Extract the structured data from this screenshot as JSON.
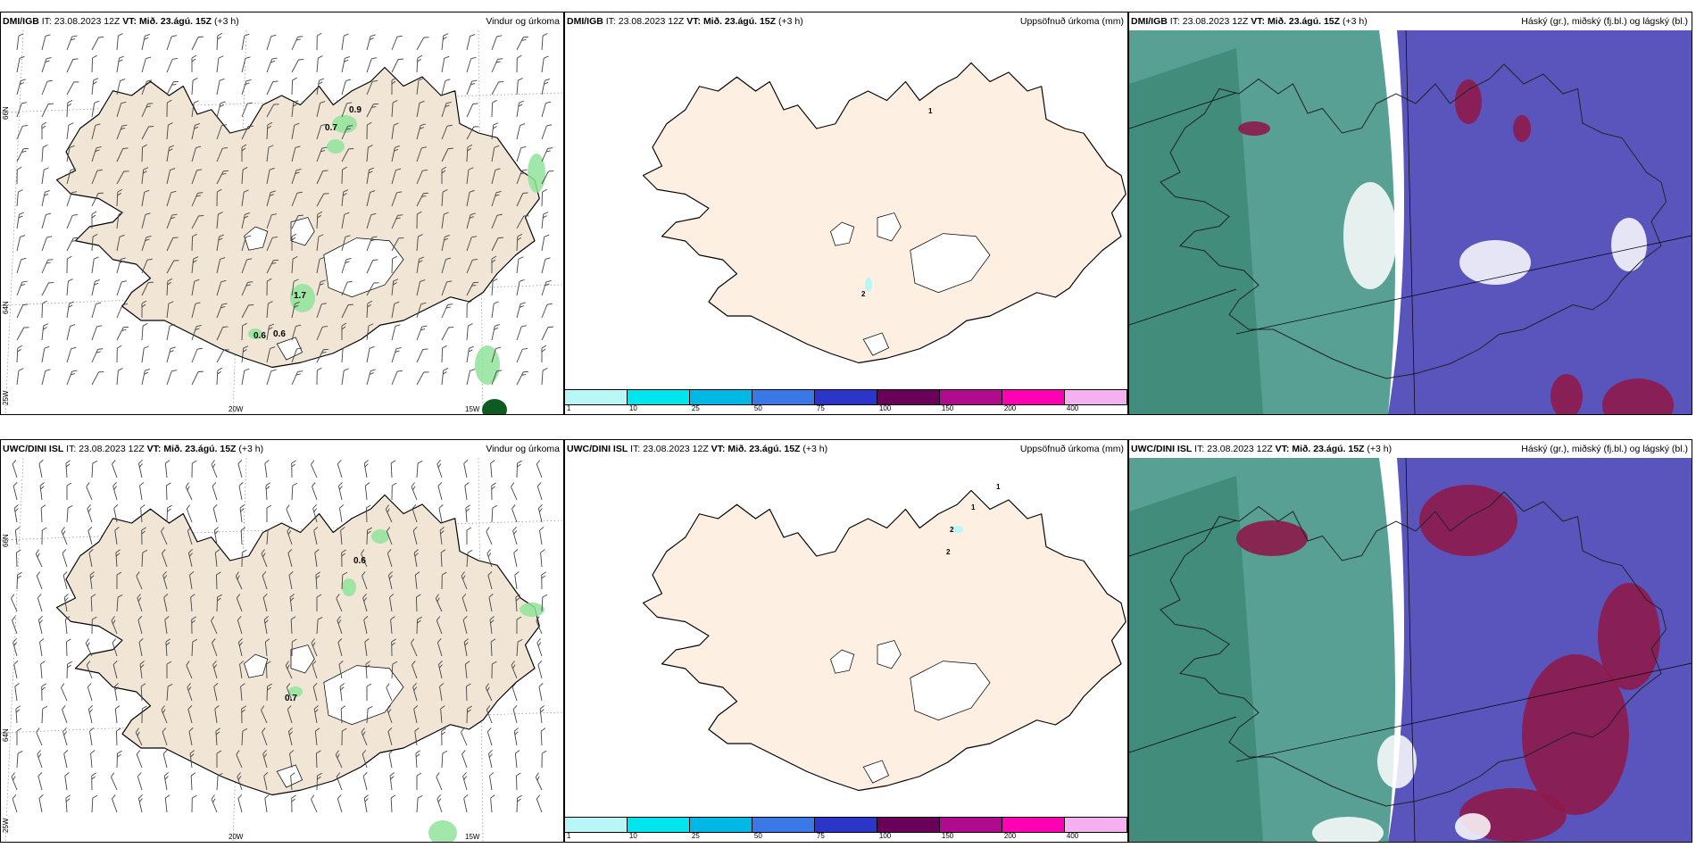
{
  "panels": [
    {
      "model": "DMI/IGB",
      "it_label": "IT:",
      "it": "23.08.2023 12Z",
      "vt_label": "VT:",
      "vt": "Mið. 23.ágú. 15Z",
      "lead": "(+3 h)",
      "product": "Vindur og úrkoma"
    },
    {
      "model": "DMI/IGB",
      "it_label": "IT:",
      "it": "23.08.2023 12Z",
      "vt_label": "VT:",
      "vt": "Mið. 23.ágú. 15Z",
      "lead": "(+3 h)",
      "product": "Uppsöfnuð úrkoma (mm)"
    },
    {
      "model": "DMI/IGB",
      "it_label": "IT:",
      "it": "23.08.2023 12Z",
      "vt_label": "VT:",
      "vt": "Mið. 23.ágú. 15Z",
      "lead": "(+3 h)",
      "product": "Háský (gr.), miðský (fj.bl.) og lágský (bl.)"
    },
    {
      "model": "UWC/DINI ISL",
      "it_label": "IT:",
      "it": "23.08.2023 12Z",
      "vt_label": "VT:",
      "vt": "Mið. 23.ágú. 15Z",
      "lead": "(+3 h)",
      "product": "Vindur og úrkoma"
    },
    {
      "model": "UWC/DINI ISL",
      "it_label": "IT:",
      "it": "23.08.2023 12Z",
      "vt_label": "VT:",
      "vt": "Mið. 23.ágú. 15Z",
      "lead": "(+3 h)",
      "product": "Uppsöfnuð úrkoma (mm)"
    },
    {
      "model": "UWC/DINI ISL",
      "it_label": "IT:",
      "it": "23.08.2023 12Z",
      "vt_label": "VT:",
      "vt": "Mið. 23.ágú. 15Z",
      "lead": "(+3 h)",
      "product": "Háský (gr.), miðský (fj.bl.) og lágský (bl.)"
    }
  ],
  "grid_labels": {
    "lat66": "66N",
    "lat64": "64N",
    "lon25": "25W",
    "lon20": "20W",
    "lon15": "15W"
  },
  "wind_values_top": [
    "0.9",
    "0.7",
    "1.7",
    "0.6",
    "0.6"
  ],
  "wind_values_bottom": [
    "0.6",
    "0.7"
  ],
  "precip_values_top": [
    "1",
    "2"
  ],
  "precip_values_bottom": [
    "1",
    "1",
    "2",
    "2"
  ],
  "legend": {
    "ticks": [
      "1",
      "10",
      "25",
      "50",
      "75",
      "100",
      "150",
      "200",
      "400"
    ],
    "colors": [
      "#b9f6f6",
      "#00e5ee",
      "#00b8e6",
      "#3a78e8",
      "#2b36c9",
      "#6a0059",
      "#b00a8e",
      "#ff00b4",
      "#f5b0f0"
    ]
  },
  "colors": {
    "land": "#f1e6d6",
    "land_light": "#fdefe1",
    "precip": "#8fe39a",
    "cloud_high": "#3a8f80",
    "cloud_mid": "#4b47b6",
    "cloud_low": "#8d1a4a"
  }
}
